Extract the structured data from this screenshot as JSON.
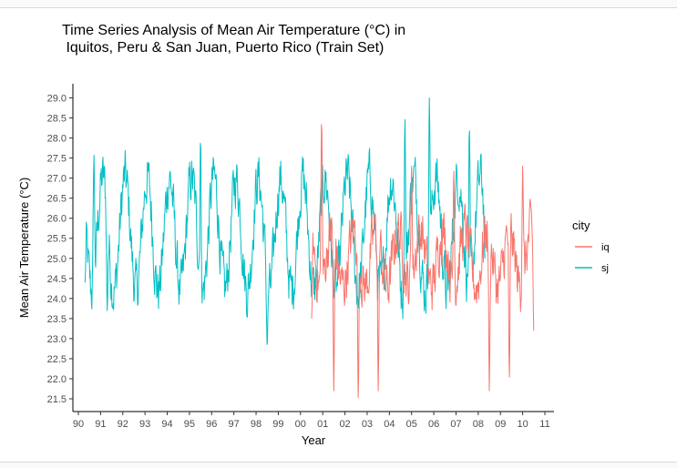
{
  "chart_data": {
    "type": "line",
    "title_line1": "Time Series Analysis of Mean Air Temperature (°C) in",
    "title_line2": " Iquitos, Peru & San Juan, Puerto Rico (Train Set)",
    "xlabel": "Year",
    "ylabel": "Mean Air Temperature (°C)",
    "x_ticks": [
      "90",
      "91",
      "92",
      "93",
      "94",
      "95",
      "96",
      "97",
      "98",
      "99",
      "00",
      "01",
      "02",
      "03",
      "04",
      "05",
      "06",
      "07",
      "08",
      "09",
      "10",
      "11"
    ],
    "x_range_years": [
      1990,
      2011
    ],
    "y_ticks": [
      "21.5",
      "22.0",
      "22.5",
      "23.0",
      "23.5",
      "24.0",
      "24.5",
      "25.0",
      "25.5",
      "26.0",
      "26.5",
      "27.0",
      "27.5",
      "28.0",
      "28.5",
      "29.0"
    ],
    "ylim": [
      21.5,
      29.0
    ],
    "grid": false,
    "legend": {
      "title": "city",
      "position": "right"
    },
    "series": [
      {
        "name": "iq",
        "color": "#F8766D",
        "start_year": 2000.5,
        "end_year": 2010.5,
        "mean": 25.0,
        "seasonal_amplitude": 0.7,
        "typical_max": 27.0,
        "typical_min": 22.5,
        "key_points": [
          [
            2000.5,
            23.5
          ],
          [
            2000.95,
            28.5
          ],
          [
            2001.5,
            21.7
          ],
          [
            2002.6,
            21.5
          ],
          [
            2003.5,
            21.7
          ],
          [
            2005.0,
            27.3
          ],
          [
            2006.9,
            27.2
          ],
          [
            2008.5,
            21.7
          ],
          [
            2009.4,
            22.0
          ],
          [
            2010.0,
            27.3
          ],
          [
            2010.5,
            23.2
          ]
        ]
      },
      {
        "name": "sj",
        "color": "#00BFC4",
        "start_year": 1990.3,
        "end_year": 2008.3,
        "mean": 25.6,
        "seasonal_amplitude": 1.4,
        "typical_max": 27.5,
        "typical_min": 23.6,
        "key_points": [
          [
            1990.3,
            24.4
          ],
          [
            1990.7,
            27.6
          ],
          [
            1991.3,
            23.7
          ],
          [
            1995.5,
            28.0
          ],
          [
            1998.5,
            22.8
          ],
          [
            2004.7,
            28.5
          ],
          [
            2005.8,
            29.0
          ],
          [
            2007.6,
            28.3
          ],
          [
            2008.3,
            25.0
          ]
        ]
      }
    ]
  }
}
